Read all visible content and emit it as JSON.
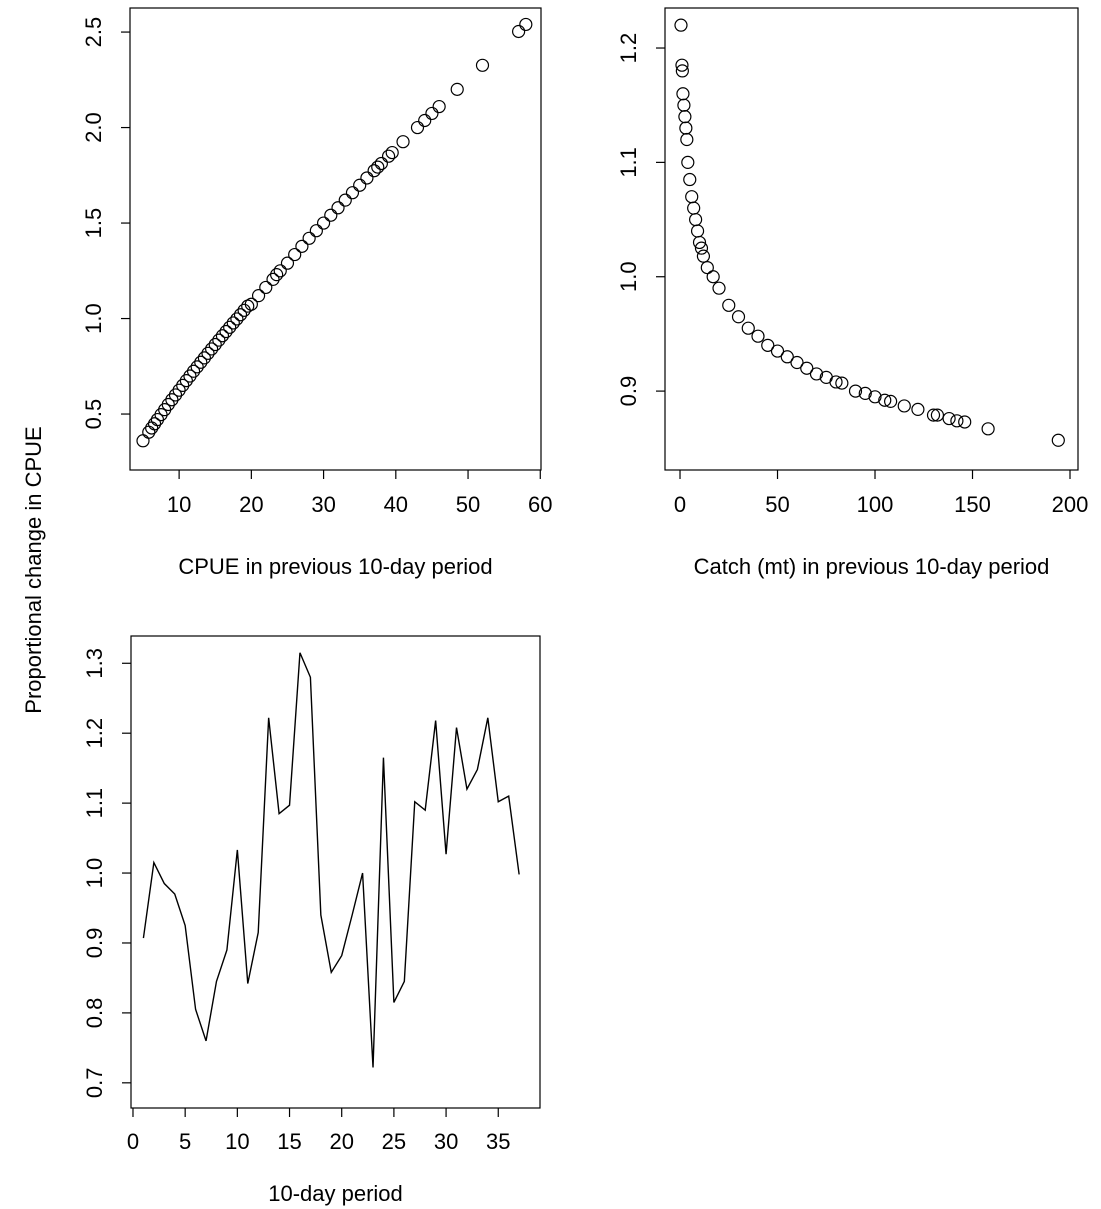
{
  "ylabel": "Proportional change in CPUE",
  "chart_data": [
    {
      "type": "scatter",
      "xlabel": "CPUE in previous 10-day period",
      "x": [
        5,
        5.8,
        6.2,
        6.6,
        7,
        7.5,
        8,
        8.5,
        9,
        9.5,
        10,
        10.5,
        11,
        11.5,
        12,
        12.5,
        13,
        13.5,
        14,
        14.5,
        15,
        15.5,
        16,
        16.5,
        17,
        17.5,
        18,
        18.5,
        19,
        19.5,
        20,
        21,
        22,
        23,
        23.5,
        24,
        25,
        26,
        27,
        28,
        29,
        30,
        31,
        32,
        33,
        34,
        35,
        36,
        37,
        37.5,
        38,
        39,
        39.5,
        41,
        43,
        44,
        45,
        46,
        48.5,
        52,
        57,
        58
      ],
      "values": [
        0.36,
        0.405,
        0.427,
        0.449,
        0.471,
        0.497,
        0.523,
        0.55,
        0.575,
        0.6,
        0.625,
        0.65,
        0.675,
        0.699,
        0.724,
        0.747,
        0.771,
        0.794,
        0.818,
        0.841,
        0.864,
        0.887,
        0.91,
        0.932,
        0.954,
        0.977,
        0.998,
        1.02,
        1.043,
        1.065,
        1.075,
        1.12,
        1.163,
        1.205,
        1.23,
        1.25,
        1.29,
        1.335,
        1.378,
        1.42,
        1.46,
        1.5,
        1.541,
        1.58,
        1.62,
        1.659,
        1.698,
        1.736,
        1.774,
        1.793,
        1.812,
        1.85,
        1.869,
        1.926,
        2.0,
        2.037,
        2.074,
        2.11,
        2.2,
        2.326,
        2.503,
        2.54
      ],
      "color": "#000000",
      "xlim": [
        3.2,
        60.1
      ],
      "xticks": [
        10,
        20,
        30,
        40,
        50,
        60
      ],
      "ylim": [
        0.207,
        2.626
      ],
      "yticks": [
        0.5,
        {
          "value": 1.0,
          "label": "1.0"
        },
        1.5,
        {
          "value": 2.0,
          "label": "2.0"
        },
        2.5
      ]
    },
    {
      "type": "scatter",
      "xlabel": "Catch (mt) in previous 10-day period",
      "x": [
        0.5,
        1,
        1.2,
        1.5,
        2,
        2.5,
        3,
        3.5,
        4,
        5,
        6,
        7,
        8,
        9,
        10,
        11,
        12,
        14,
        17,
        20,
        25,
        30,
        35,
        40,
        45,
        50,
        55,
        60,
        65,
        70,
        75,
        80,
        83,
        90,
        95,
        100,
        105,
        108,
        115,
        122,
        130,
        132,
        138,
        142,
        146,
        158,
        194
      ],
      "values": [
        1.22,
        1.185,
        1.18,
        1.16,
        1.15,
        1.14,
        1.13,
        1.12,
        1.1,
        1.085,
        1.07,
        1.06,
        1.05,
        1.04,
        1.03,
        1.025,
        1.018,
        1.008,
        1.0,
        0.99,
        0.975,
        0.965,
        0.955,
        0.948,
        0.94,
        0.935,
        0.93,
        0.925,
        0.92,
        0.915,
        0.912,
        0.908,
        0.907,
        0.9,
        0.898,
        0.895,
        0.892,
        0.891,
        0.887,
        0.884,
        0.879,
        0.879,
        0.876,
        0.874,
        0.873,
        0.867,
        0.857
      ],
      "color": "#000000",
      "xlim": [
        -7.7,
        204.1
      ],
      "xticks": [
        0,
        50,
        100,
        150,
        200
      ],
      "ylim": [
        0.831,
        1.235
      ],
      "yticks": [
        0.9,
        {
          "value": 1.0,
          "label": "1.0"
        },
        1.1,
        1.2
      ]
    },
    {
      "type": "line",
      "xlabel": "10-day period",
      "x": [
        1,
        2,
        3,
        4,
        5,
        6,
        7,
        8,
        9,
        10,
        11,
        12,
        13,
        14,
        15,
        16,
        17,
        18,
        19,
        20,
        21,
        22,
        23,
        24,
        25,
        26,
        27,
        28,
        29,
        30,
        31,
        32,
        33,
        34,
        35,
        36,
        37
      ],
      "values": [
        0.907,
        1.015,
        0.985,
        0.97,
        0.925,
        0.805,
        0.76,
        0.845,
        0.89,
        1.033,
        0.842,
        0.915,
        1.222,
        1.085,
        1.097,
        1.315,
        1.28,
        0.94,
        0.858,
        0.882,
        0.94,
        1.0,
        0.722,
        1.165,
        0.815,
        0.845,
        1.102,
        1.09,
        1.218,
        1.027,
        1.208,
        1.12,
        1.148,
        1.222,
        1.102,
        1.11,
        0.998
      ],
      "color": "#000000",
      "xlim": [
        -0.19,
        39.0
      ],
      "xticks": [
        0,
        5,
        10,
        15,
        20,
        25,
        30,
        35
      ],
      "ylim": [
        0.664,
        1.339
      ],
      "yticks": [
        0.7,
        0.8,
        0.9,
        {
          "value": 1.0,
          "label": "1.0"
        },
        1.1,
        1.2,
        1.3
      ]
    }
  ]
}
